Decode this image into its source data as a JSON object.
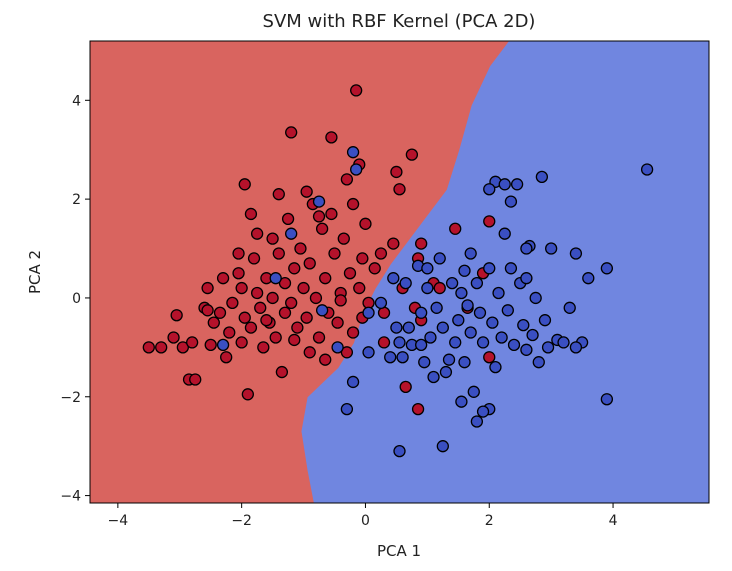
{
  "chart_data": {
    "type": "scatter",
    "title": "SVM with RBF Kernel (PCA 2D)",
    "xlabel": "PCA 1",
    "ylabel": "PCA 2",
    "xlim": [
      -4.45,
      5.55
    ],
    "ylim": [
      -4.15,
      5.2
    ],
    "xticks": [
      -4,
      -2,
      0,
      2,
      4
    ],
    "yticks": [
      -4,
      -2,
      0,
      2,
      4
    ],
    "grid": false,
    "legend": "none",
    "colors": {
      "region_red": "#d9645f",
      "region_blue": "#7086e0",
      "point_red": "#b5122b",
      "point_blue": "#3a4fc2",
      "point_edge": "#000000"
    },
    "decision_boundary": [
      [
        2.3,
        5.2
      ],
      [
        2.0,
        4.7
      ],
      [
        1.7,
        3.9
      ],
      [
        1.5,
        3.0
      ],
      [
        1.3,
        2.2
      ],
      [
        1.0,
        1.7
      ],
      [
        0.7,
        1.2
      ],
      [
        0.4,
        0.7
      ],
      [
        0.15,
        0.2
      ],
      [
        -0.05,
        -0.3
      ],
      [
        -0.2,
        -0.9
      ],
      [
        -0.45,
        -1.4
      ],
      [
        -0.95,
        -2.0
      ],
      [
        -1.05,
        -2.7
      ],
      [
        -0.95,
        -3.5
      ],
      [
        -0.85,
        -4.15
      ]
    ],
    "series": [
      {
        "color": "#b5122b",
        "points": [
          [
            -3.5,
            -1.0
          ],
          [
            -3.3,
            -1.0
          ],
          [
            -3.1,
            -0.8
          ],
          [
            -3.05,
            -0.35
          ],
          [
            -2.95,
            -1.0
          ],
          [
            -2.8,
            -0.9
          ],
          [
            -2.85,
            -1.65
          ],
          [
            -2.75,
            -1.65
          ],
          [
            -2.6,
            -0.2
          ],
          [
            -2.55,
            0.2
          ],
          [
            -2.45,
            -0.5
          ],
          [
            -2.5,
            -0.95
          ],
          [
            -2.3,
            0.4
          ],
          [
            -2.35,
            -0.3
          ],
          [
            -2.25,
            -1.2
          ],
          [
            -2.15,
            -0.1
          ],
          [
            -2.2,
            -0.7
          ],
          [
            -2.05,
            0.5
          ],
          [
            -2.0,
            0.2
          ],
          [
            -2.0,
            -0.9
          ],
          [
            -1.95,
            -0.4
          ],
          [
            -1.9,
            -1.95
          ],
          [
            -1.85,
            -0.6
          ],
          [
            -1.8,
            0.8
          ],
          [
            -1.75,
            0.1
          ],
          [
            -1.75,
            1.3
          ],
          [
            -1.7,
            -0.2
          ],
          [
            -1.65,
            -1.0
          ],
          [
            -1.6,
            0.4
          ],
          [
            -1.55,
            -0.5
          ],
          [
            -1.5,
            1.2
          ],
          [
            -1.5,
            0.0
          ],
          [
            -1.45,
            -0.8
          ],
          [
            -1.4,
            0.9
          ],
          [
            -1.35,
            -1.5
          ],
          [
            -1.3,
            0.3
          ],
          [
            -1.3,
            -0.3
          ],
          [
            -1.25,
            1.6
          ],
          [
            -1.2,
            -0.1
          ],
          [
            -1.15,
            0.6
          ],
          [
            -1.1,
            -0.6
          ],
          [
            -1.05,
            1.0
          ],
          [
            -1.0,
            0.2
          ],
          [
            -0.95,
            -0.4
          ],
          [
            -0.9,
            0.7
          ],
          [
            -0.9,
            -1.1
          ],
          [
            -0.85,
            1.9
          ],
          [
            -0.8,
            0.0
          ],
          [
            -0.75,
            -0.8
          ],
          [
            -0.7,
            1.4
          ],
          [
            -0.65,
            0.4
          ],
          [
            -0.6,
            -0.3
          ],
          [
            -0.55,
            1.7
          ],
          [
            -0.5,
            0.9
          ],
          [
            -0.45,
            -0.5
          ],
          [
            -0.4,
            0.1
          ],
          [
            -0.35,
            1.2
          ],
          [
            -0.3,
            -1.1
          ],
          [
            -0.3,
            2.4
          ],
          [
            -0.25,
            0.5
          ],
          [
            -0.2,
            -0.7
          ],
          [
            -0.2,
            1.9
          ],
          [
            -0.15,
            4.2
          ],
          [
            -0.1,
            0.2
          ],
          [
            -0.05,
            -0.4
          ],
          [
            -0.05,
            0.8
          ],
          [
            0.0,
            1.5
          ],
          [
            0.05,
            -0.1
          ],
          [
            0.15,
            0.6
          ],
          [
            0.25,
            0.9
          ],
          [
            0.3,
            -0.3
          ],
          [
            0.45,
            1.1
          ],
          [
            0.55,
            2.2
          ],
          [
            0.6,
            0.2
          ],
          [
            0.65,
            -1.8
          ],
          [
            0.75,
            2.9
          ],
          [
            0.8,
            -0.2
          ],
          [
            0.85,
            0.8
          ],
          [
            0.9,
            1.1
          ],
          [
            0.9,
            -0.45
          ],
          [
            1.1,
            0.3
          ],
          [
            1.2,
            0.2
          ],
          [
            1.45,
            1.4
          ],
          [
            1.65,
            -0.2
          ],
          [
            1.9,
            0.5
          ],
          [
            2.0,
            -1.2
          ],
          [
            2.0,
            1.55
          ],
          [
            0.85,
            -2.25
          ],
          [
            -1.2,
            3.35
          ],
          [
            -0.55,
            3.25
          ],
          [
            -0.1,
            2.7
          ],
          [
            0.5,
            2.55
          ],
          [
            -1.95,
            2.3
          ],
          [
            -1.85,
            1.7
          ],
          [
            -2.05,
            0.9
          ],
          [
            -2.55,
            -0.25
          ],
          [
            -1.4,
            2.1
          ],
          [
            -0.95,
            2.15
          ],
          [
            -0.75,
            1.65
          ],
          [
            -1.6,
            -0.45
          ],
          [
            -0.4,
            -0.05
          ],
          [
            -1.15,
            -0.85
          ],
          [
            -0.65,
            -1.25
          ],
          [
            0.3,
            -0.9
          ]
        ]
      },
      {
        "color": "#3a4fc2",
        "points": [
          [
            -0.2,
            2.95
          ],
          [
            -0.15,
            2.6
          ],
          [
            -0.75,
            1.95
          ],
          [
            -1.2,
            1.3
          ],
          [
            -1.45,
            0.4
          ],
          [
            -0.7,
            -0.25
          ],
          [
            -2.3,
            -0.95
          ],
          [
            -0.45,
            -1.0
          ],
          [
            0.05,
            -0.3
          ],
          [
            0.25,
            -0.1
          ],
          [
            0.4,
            -1.2
          ],
          [
            0.5,
            -0.6
          ],
          [
            0.55,
            -0.9
          ],
          [
            0.6,
            -1.2
          ],
          [
            0.65,
            0.3
          ],
          [
            0.7,
            -0.6
          ],
          [
            0.75,
            -0.95
          ],
          [
            0.85,
            0.65
          ],
          [
            0.9,
            -0.3
          ],
          [
            0.95,
            -1.3
          ],
          [
            1.0,
            0.6
          ],
          [
            1.05,
            -0.8
          ],
          [
            1.1,
            -1.6
          ],
          [
            1.15,
            -0.2
          ],
          [
            1.2,
            0.8
          ],
          [
            1.25,
            -0.6
          ],
          [
            1.3,
            -1.5
          ],
          [
            1.35,
            -1.25
          ],
          [
            1.4,
            0.3
          ],
          [
            1.45,
            -0.9
          ],
          [
            1.5,
            -0.45
          ],
          [
            1.55,
            0.1
          ],
          [
            1.6,
            -1.3
          ],
          [
            1.65,
            -0.15
          ],
          [
            1.7,
            -0.7
          ],
          [
            1.75,
            -1.9
          ],
          [
            1.8,
            -2.5
          ],
          [
            1.85,
            -0.3
          ],
          [
            1.9,
            -0.9
          ],
          [
            2.0,
            0.6
          ],
          [
            2.05,
            -0.5
          ],
          [
            2.1,
            -1.4
          ],
          [
            2.15,
            0.1
          ],
          [
            2.2,
            -0.8
          ],
          [
            2.25,
            1.3
          ],
          [
            2.3,
            -0.25
          ],
          [
            2.35,
            0.6
          ],
          [
            2.4,
            -0.95
          ],
          [
            2.45,
            2.3
          ],
          [
            2.5,
            0.3
          ],
          [
            2.55,
            -0.55
          ],
          [
            2.6,
            -1.05
          ],
          [
            2.65,
            1.05
          ],
          [
            2.7,
            -0.75
          ],
          [
            2.75,
            0.0
          ],
          [
            2.8,
            -1.3
          ],
          [
            2.85,
            2.45
          ],
          [
            2.9,
            -0.45
          ],
          [
            2.95,
            -1.0
          ],
          [
            3.0,
            1.0
          ],
          [
            3.1,
            -0.85
          ],
          [
            3.2,
            -0.9
          ],
          [
            3.3,
            -0.2
          ],
          [
            3.4,
            0.9
          ],
          [
            3.5,
            -0.9
          ],
          [
            3.6,
            0.4
          ],
          [
            3.9,
            0.6
          ],
          [
            3.9,
            -2.05
          ],
          [
            4.55,
            2.6
          ],
          [
            2.1,
            2.35
          ],
          [
            2.25,
            2.3
          ],
          [
            2.0,
            2.2
          ],
          [
            2.35,
            1.95
          ],
          [
            0.9,
            -0.95
          ],
          [
            0.55,
            -3.1
          ],
          [
            1.25,
            -3.0
          ],
          [
            1.55,
            -2.1
          ],
          [
            2.0,
            -2.25
          ],
          [
            1.9,
            -2.3
          ],
          [
            -0.3,
            -2.25
          ],
          [
            -0.2,
            -1.7
          ],
          [
            0.05,
            -1.1
          ],
          [
            1.0,
            0.2
          ],
          [
            1.6,
            0.55
          ],
          [
            0.45,
            0.4
          ],
          [
            1.7,
            0.9
          ],
          [
            2.6,
            0.4
          ],
          [
            3.4,
            -1.0
          ],
          [
            2.6,
            1.0
          ],
          [
            1.8,
            0.3
          ]
        ]
      }
    ]
  }
}
